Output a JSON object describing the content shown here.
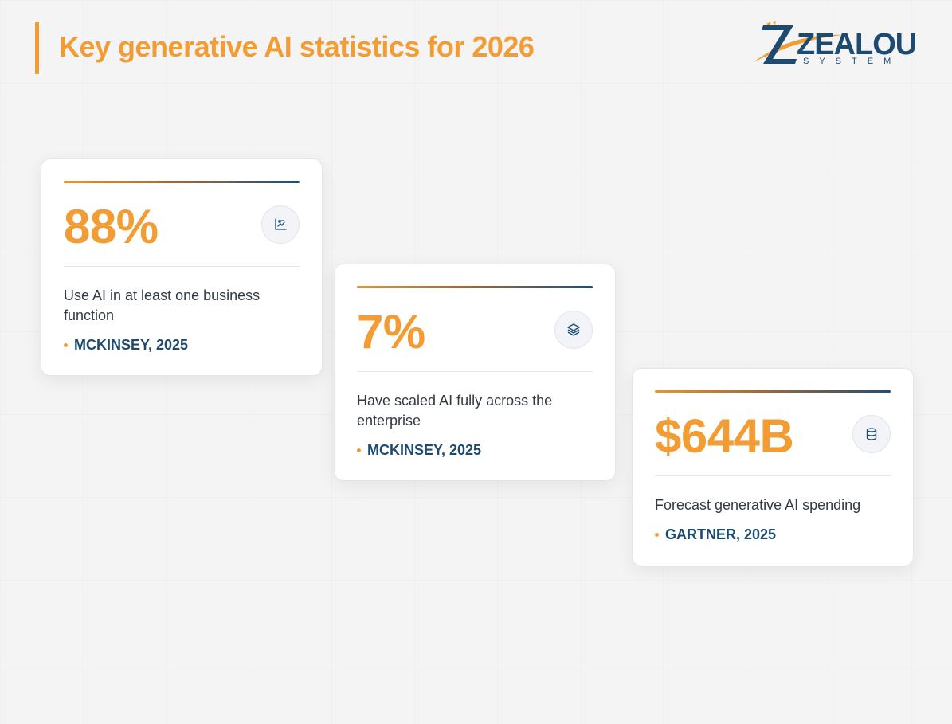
{
  "header": {
    "title": "Key generative AI statistics for 2026",
    "accent_color": "#f39c33"
  },
  "logo": {
    "wordmark": "ZEALOUS",
    "tagline": "SYSTEM",
    "primary_color": "#1d4a70",
    "secondary_color": "#f39c33"
  },
  "cards": [
    {
      "value": "88%",
      "description": "Use AI in at least one business function",
      "source": "MCKINSEY, 2025",
      "icon": "chart-icon"
    },
    {
      "value": "7%",
      "description": "Have scaled AI fully across the enterprise",
      "source": "MCKINSEY, 2025",
      "icon": "layers-icon"
    },
    {
      "value": "$644B",
      "description": "Forecast generative AI spending",
      "source": "GARTNER, 2025",
      "icon": "database-icon"
    }
  ]
}
